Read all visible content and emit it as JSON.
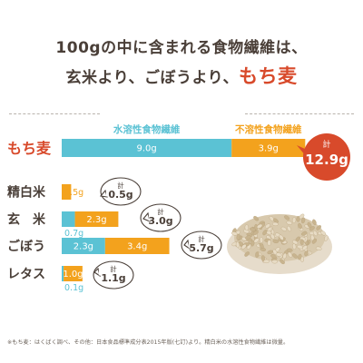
{
  "heading": {
    "line1": "100gの中に含まれる食物繊維は、",
    "line2_prefix": "玄米より、ごぼうより、",
    "line2_accent": "もち麦"
  },
  "colors": {
    "soluble": "#5bc2d4",
    "insoluble": "#f3a21d",
    "accent": "#d84a2b",
    "text": "#4a3f38"
  },
  "chart_data": {
    "type": "bar",
    "stacked": true,
    "orientation": "horizontal",
    "categories": [
      "もち麦",
      "精白米",
      "玄　米",
      "ごぼう",
      "レタス"
    ],
    "series": [
      {
        "name": "水溶性食物繊維",
        "values": [
          9.0,
          0.0,
          0.7,
          2.3,
          0.1
        ],
        "labels": [
          "9.0g",
          "",
          "0.7g",
          "2.3g",
          "0.1g"
        ]
      },
      {
        "name": "不溶性食物繊維",
        "values": [
          3.9,
          0.5,
          2.3,
          3.4,
          1.0
        ],
        "labels": [
          "3.9g",
          "0.5g",
          "2.3g",
          "3.4g",
          "1.0g"
        ]
      }
    ],
    "total_prefix": "計",
    "totals": [
      "12.9g",
      "0.5g",
      "3.0g",
      "5.7g",
      "1.1g"
    ],
    "xlim": [
      0,
      12.9
    ],
    "grid": false,
    "legend": "top"
  },
  "footnote": "※もち麦：はくばく調べ、その他：日本食品標準成分表2015年版(七訂)より。精白米の水溶性食物繊維は微量。",
  "image": {
    "icon": "grain-pile-photo"
  }
}
